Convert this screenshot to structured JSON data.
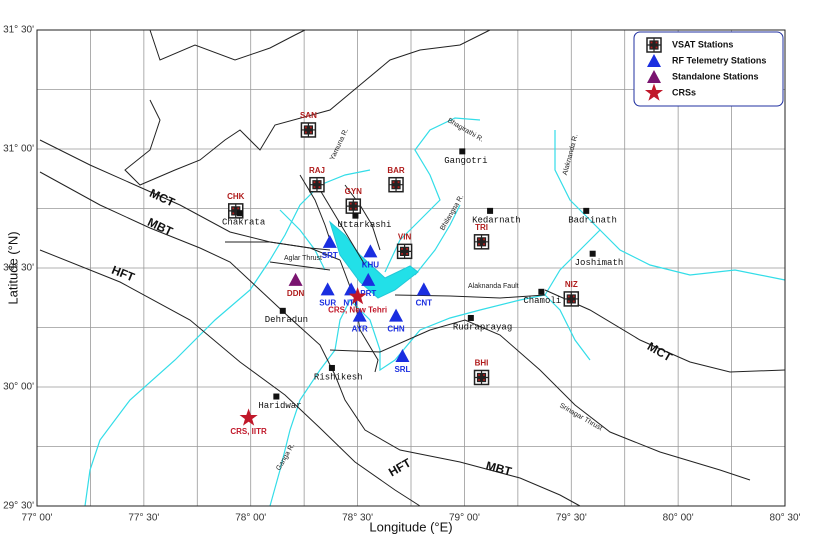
{
  "map": {
    "xlabel": "Longitude (°E)",
    "ylabel": "Latitude (°N)",
    "xlim": [
      77,
      80.5
    ],
    "ylim": [
      29.5,
      31.5
    ],
    "xticks": [
      {
        "value": 77,
        "label": "77° 00'"
      },
      {
        "value": 77.5,
        "label": "77° 30'"
      },
      {
        "value": 78,
        "label": "78° 00'"
      },
      {
        "value": 78.5,
        "label": "78° 30'"
      },
      {
        "value": 79,
        "label": "79° 00'"
      },
      {
        "value": 79.5,
        "label": "79° 30'"
      },
      {
        "value": 80,
        "label": "80° 00'"
      },
      {
        "value": 80.5,
        "label": "80° 30'"
      }
    ],
    "yticks": [
      {
        "value": 29.5,
        "label": "29° 30'"
      },
      {
        "value": 30,
        "label": "30° 00'"
      },
      {
        "value": 30.5,
        "label": "30° 30'"
      },
      {
        "value": 31,
        "label": "31° 00'"
      },
      {
        "value": 31.5,
        "label": "31° 30'"
      }
    ],
    "grid": true,
    "legend": {
      "vsat": "VSAT Stations",
      "rf": "RF Telemetry  Stations",
      "standalone": "Standalone Stations",
      "crs": "CRSs"
    },
    "legend_corner": "top-right",
    "vsat_stations": {
      "color": "#b01c1c",
      "points": [
        {
          "label": "SAN",
          "lon": 78.27,
          "lat": 31.08
        },
        {
          "label": "RAJ",
          "lon": 78.31,
          "lat": 30.85
        },
        {
          "label": "GYN",
          "lon": 78.48,
          "lat": 30.76
        },
        {
          "label": "BAR",
          "lon": 78.68,
          "lat": 30.85
        },
        {
          "label": "CHK",
          "lon": 77.93,
          "lat": 30.74
        },
        {
          "label": "VIN",
          "lon": 78.72,
          "lat": 30.57
        },
        {
          "label": "TRI",
          "lon": 79.08,
          "lat": 30.61
        },
        {
          "label": "NIZ",
          "lon": 79.5,
          "lat": 30.37
        },
        {
          "label": "BHI",
          "lon": 79.08,
          "lat": 30.04
        }
      ]
    },
    "rf_stations": {
      "color": "#1a2ee0",
      "points": [
        {
          "label": "SRT",
          "lon": 78.37,
          "lat": 30.61
        },
        {
          "label": "KHU",
          "lon": 78.56,
          "lat": 30.57
        },
        {
          "label": "PRT",
          "lon": 78.55,
          "lat": 30.45
        },
        {
          "label": "SUR",
          "lon": 78.36,
          "lat": 30.41
        },
        {
          "label": "NTT",
          "lon": 78.47,
          "lat": 30.41
        },
        {
          "label": "AYR",
          "lon": 78.51,
          "lat": 30.3
        },
        {
          "label": "CHN",
          "lon": 78.68,
          "lat": 30.3
        },
        {
          "label": "CNT",
          "lon": 78.81,
          "lat": 30.41
        },
        {
          "label": "SRL",
          "lon": 78.71,
          "lat": 30.13
        }
      ]
    },
    "standalone_stations": {
      "color": "#7a1470",
      "label_color": "#b01c1c",
      "points": [
        {
          "label": "DDN",
          "lon": 78.21,
          "lat": 30.45
        }
      ]
    },
    "crs": {
      "color": "#c0182a",
      "points": [
        {
          "label": "CRS, New Tehri",
          "lon": 78.5,
          "lat": 30.38
        },
        {
          "label": "CRS, IITR",
          "lon": 77.99,
          "lat": 29.87
        }
      ]
    },
    "towns": [
      {
        "label": "Gangotri",
        "lon": 78.99,
        "lat": 30.99
      },
      {
        "label": "Kedarnath",
        "lon": 79.12,
        "lat": 30.74
      },
      {
        "label": "Badrinath",
        "lon": 79.57,
        "lat": 30.74
      },
      {
        "label": "Joshimath",
        "lon": 79.6,
        "lat": 30.56
      },
      {
        "label": "Chamoli",
        "lon": 79.36,
        "lat": 30.4
      },
      {
        "label": "Rudraprayag",
        "lon": 79.03,
        "lat": 30.29
      },
      {
        "label": "Dehradun",
        "lon": 78.15,
        "lat": 30.32
      },
      {
        "label": "Rishikesh",
        "lon": 78.38,
        "lat": 30.08
      },
      {
        "label": "Haridwar",
        "lon": 78.12,
        "lat": 29.96
      },
      {
        "label": "Uttarkashi",
        "lon": 78.49,
        "lat": 30.72
      },
      {
        "label": "Chakrata",
        "lon": 77.95,
        "lat": 30.73
      }
    ],
    "features": {
      "mct": "MCT",
      "mbt": "MBT",
      "hft": "HFT",
      "srinagar": "Srinagar Thrust",
      "alaknanda_fault": "Alaknanda Fault",
      "aglar": "Aglar Thrust",
      "ganga": "Ganga R.",
      "yamuna": "Yamuna R.",
      "bhagirathi": "Bhagirathi R.",
      "bhilangna": "Bhilangna R.",
      "alaknanda_r": "Alaknanda R."
    }
  }
}
